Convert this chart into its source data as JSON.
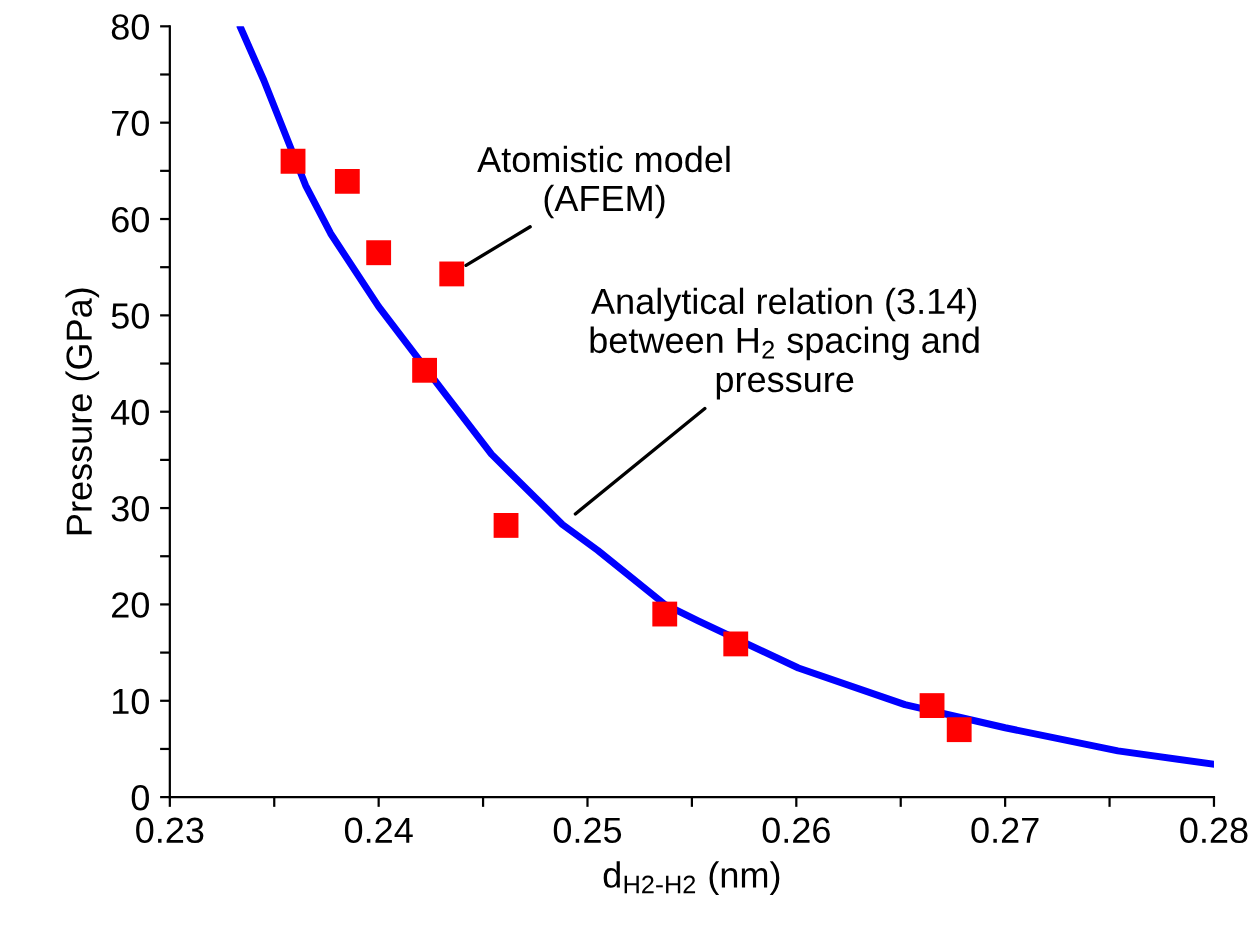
{
  "chart_data": {
    "type": "scatter",
    "xlabel": "d$_{H2-H2}$ (nm)",
    "ylabel": "Pressure (GPa)",
    "series": [
      {
        "type": "line",
        "color": "#0000ff",
        "x": [
          0.2334,
          0.2345,
          0.2365,
          0.2377,
          0.24,
          0.2432,
          0.2454,
          0.2488,
          0.2505,
          0.2537,
          0.2553,
          0.2601,
          0.2652,
          0.27,
          0.2754,
          0.28
        ],
        "values": [
          79.8,
          74.4,
          63.5,
          58.5,
          50.9,
          41.8,
          35.6,
          28.3,
          25.6,
          20.0,
          18.3,
          13.4,
          9.6,
          7.2,
          4.8,
          3.4
        ]
      },
      {
        "color": "#ff0000",
        "marker": "square",
        "x": [
          0.2359,
          0.2385,
          0.24,
          0.2435,
          0.2422,
          0.2461,
          0.2537,
          0.2571,
          0.2665,
          0.2678
        ],
        "values": [
          66.0,
          63.9,
          56.5,
          54.3,
          44.3,
          28.2,
          19.0,
          15.9,
          9.5,
          7.0
        ]
      }
    ],
    "annotations": [
      {
        "text": "Atomistic model\n(AFEM)",
        "x": 0.2435,
        "y": 54.3
      },
      {
        "text": "Analytical relation (3.14)\nbetween H$_{2}$ spacing and\npressure",
        "x": 0.2488,
        "y": 28.3
      }
    ],
    "xlim": [
      0.23,
      0.28
    ],
    "ylim": [
      0,
      80
    ],
    "xticks": [
      0.23,
      {
        "value": 0.235,
        "label": null
      },
      0.24,
      {
        "value": 0.245,
        "label": null
      },
      0.25,
      {
        "value": 0.255,
        "label": null
      },
      0.26,
      {
        "value": 0.265,
        "label": null
      },
      0.27,
      {
        "value": 0.275,
        "label": null
      },
      0.28
    ],
    "yticks": [
      0,
      {
        "value": 5,
        "label": null
      },
      10,
      {
        "value": 15,
        "label": null
      },
      20,
      {
        "value": 25,
        "label": null
      },
      30,
      {
        "value": 35,
        "label": null
      },
      40,
      {
        "value": 45,
        "label": null
      },
      50,
      {
        "value": 55,
        "label": null
      },
      60,
      {
        "value": 65,
        "label": null
      },
      70,
      {
        "value": 75,
        "label": null
      },
      80
    ],
    "grid": false
  }
}
